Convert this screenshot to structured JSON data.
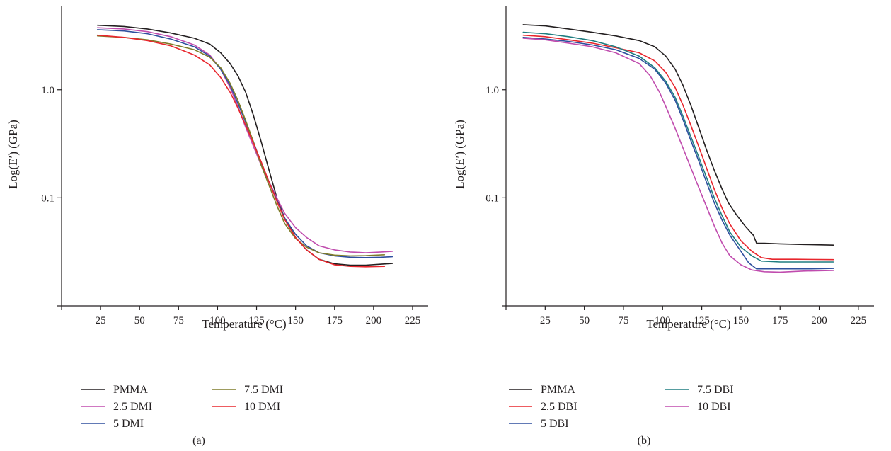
{
  "chart_data": [
    {
      "type": "line",
      "panel_label": "(a)",
      "xlabel": "Temperature (°C)",
      "ylabel": "Log(E′) (GPa)",
      "xlim": [
        0,
        235
      ],
      "ylim": [
        0.01,
        6
      ],
      "yscale": "log",
      "grid": false,
      "xticks": [
        25,
        50,
        75,
        100,
        125,
        150,
        175,
        200,
        225
      ],
      "yticks": [
        0.1,
        1.0
      ],
      "yticklabels": [
        "0.1",
        "1.0"
      ],
      "legend_position": "bottom",
      "series": [
        {
          "name": "PMMA",
          "color": "#231f20",
          "points": [
            [
              23,
              3.95
            ],
            [
              40,
              3.85
            ],
            [
              55,
              3.65
            ],
            [
              70,
              3.35
            ],
            [
              85,
              3.0
            ],
            [
              95,
              2.65
            ],
            [
              102,
              2.2
            ],
            [
              108,
              1.75
            ],
            [
              113,
              1.35
            ],
            [
              118,
              0.95
            ],
            [
              123,
              0.58
            ],
            [
              128,
              0.33
            ],
            [
              133,
              0.18
            ],
            [
              138,
              0.1
            ],
            [
              143,
              0.065
            ],
            [
              150,
              0.043
            ],
            [
              157,
              0.033
            ],
            [
              165,
              0.027
            ],
            [
              175,
              0.0245
            ],
            [
              185,
              0.0238
            ],
            [
              195,
              0.0238
            ],
            [
              205,
              0.0243
            ],
            [
              212,
              0.0247
            ]
          ]
        },
        {
          "name": "2.5 DMI",
          "color": "#c04cae",
          "points": [
            [
              23,
              3.75
            ],
            [
              40,
              3.65
            ],
            [
              55,
              3.45
            ],
            [
              70,
              3.1
            ],
            [
              85,
              2.6
            ],
            [
              95,
              2.1
            ],
            [
              102,
              1.55
            ],
            [
              108,
              1.05
            ],
            [
              113,
              0.7
            ],
            [
              118,
              0.45
            ],
            [
              123,
              0.3
            ],
            [
              128,
              0.2
            ],
            [
              133,
              0.14
            ],
            [
              138,
              0.1
            ],
            [
              143,
              0.072
            ],
            [
              150,
              0.053
            ],
            [
              157,
              0.043
            ],
            [
              165,
              0.036
            ],
            [
              175,
              0.033
            ],
            [
              185,
              0.0315
            ],
            [
              195,
              0.031
            ],
            [
              205,
              0.0315
            ],
            [
              212,
              0.032
            ]
          ]
        },
        {
          "name": "5 DMI",
          "color": "#2e4f9e",
          "points": [
            [
              23,
              3.6
            ],
            [
              40,
              3.5
            ],
            [
              55,
              3.3
            ],
            [
              70,
              2.95
            ],
            [
              85,
              2.5
            ],
            [
              95,
              2.05
            ],
            [
              102,
              1.55
            ],
            [
              108,
              1.1
            ],
            [
              113,
              0.75
            ],
            [
              118,
              0.5
            ],
            [
              123,
              0.33
            ],
            [
              128,
              0.21
            ],
            [
              133,
              0.14
            ],
            [
              138,
              0.095
            ],
            [
              143,
              0.065
            ],
            [
              150,
              0.046
            ],
            [
              157,
              0.036
            ],
            [
              165,
              0.031
            ],
            [
              175,
              0.029
            ],
            [
              185,
              0.0282
            ],
            [
              195,
              0.028
            ],
            [
              205,
              0.0282
            ],
            [
              212,
              0.0285
            ]
          ]
        },
        {
          "name": "7.5 DMI",
          "color": "#7f7c2a",
          "points": [
            [
              23,
              3.15
            ],
            [
              40,
              3.05
            ],
            [
              55,
              2.9
            ],
            [
              70,
              2.65
            ],
            [
              85,
              2.35
            ],
            [
              95,
              2.0
            ],
            [
              102,
              1.6
            ],
            [
              108,
              1.15
            ],
            [
              113,
              0.8
            ],
            [
              118,
              0.52
            ],
            [
              123,
              0.33
            ],
            [
              128,
              0.2
            ],
            [
              133,
              0.13
            ],
            [
              138,
              0.085
            ],
            [
              143,
              0.058
            ],
            [
              150,
              0.042
            ],
            [
              157,
              0.035
            ],
            [
              165,
              0.031
            ],
            [
              175,
              0.0295
            ],
            [
              185,
              0.029
            ],
            [
              195,
              0.0292
            ],
            [
              207,
              0.0297
            ]
          ]
        },
        {
          "name": "10 DMI",
          "color": "#e8262d",
          "points": [
            [
              23,
              3.2
            ],
            [
              40,
              3.05
            ],
            [
              55,
              2.85
            ],
            [
              70,
              2.55
            ],
            [
              85,
              2.1
            ],
            [
              95,
              1.7
            ],
            [
              102,
              1.3
            ],
            [
              108,
              0.95
            ],
            [
              113,
              0.68
            ],
            [
              118,
              0.47
            ],
            [
              123,
              0.32
            ],
            [
              128,
              0.215
            ],
            [
              133,
              0.14
            ],
            [
              138,
              0.093
            ],
            [
              143,
              0.063
            ],
            [
              150,
              0.043
            ],
            [
              157,
              0.033
            ],
            [
              165,
              0.027
            ],
            [
              175,
              0.024
            ],
            [
              185,
              0.0232
            ],
            [
              195,
              0.023
            ],
            [
              207,
              0.0232
            ]
          ]
        }
      ]
    },
    {
      "type": "line",
      "panel_label": "(b)",
      "xlabel": "Temperature (°C)",
      "ylabel": "Log(E′) (GPa)",
      "xlim": [
        0,
        235
      ],
      "ylim": [
        0.01,
        6
      ],
      "yscale": "log",
      "grid": false,
      "xticks": [
        25,
        50,
        75,
        100,
        125,
        150,
        175,
        200,
        225
      ],
      "yticks": [
        0.1,
        1.0
      ],
      "yticklabels": [
        "0.1",
        "1.0"
      ],
      "legend_position": "bottom",
      "series": [
        {
          "name": "PMMA",
          "color": "#231f20",
          "points": [
            [
              11,
              4.0
            ],
            [
              25,
              3.9
            ],
            [
              40,
              3.65
            ],
            [
              55,
              3.4
            ],
            [
              70,
              3.15
            ],
            [
              85,
              2.85
            ],
            [
              95,
              2.5
            ],
            [
              102,
              2.05
            ],
            [
              108,
              1.55
            ],
            [
              113,
              1.1
            ],
            [
              118,
              0.72
            ],
            [
              123,
              0.45
            ],
            [
              128,
              0.28
            ],
            [
              133,
              0.18
            ],
            [
              138,
              0.12
            ],
            [
              142,
              0.09
            ],
            [
              147,
              0.07
            ],
            [
              153,
              0.054
            ],
            [
              158,
              0.045
            ],
            [
              160,
              0.038
            ],
            [
              165,
              0.038
            ],
            [
              175,
              0.0375
            ],
            [
              190,
              0.037
            ],
            [
              209,
              0.0365
            ]
          ]
        },
        {
          "name": "2.5 DBI",
          "color": "#e8262d",
          "points": [
            [
              11,
              3.2
            ],
            [
              25,
              3.1
            ],
            [
              40,
              2.9
            ],
            [
              55,
              2.7
            ],
            [
              70,
              2.45
            ],
            [
              85,
              2.2
            ],
            [
              95,
              1.85
            ],
            [
              102,
              1.45
            ],
            [
              108,
              1.05
            ],
            [
              113,
              0.72
            ],
            [
              118,
              0.47
            ],
            [
              123,
              0.3
            ],
            [
              128,
              0.19
            ],
            [
              133,
              0.12
            ],
            [
              138,
              0.08
            ],
            [
              143,
              0.057
            ],
            [
              150,
              0.04
            ],
            [
              157,
              0.032
            ],
            [
              163,
              0.028
            ],
            [
              170,
              0.027
            ],
            [
              185,
              0.027
            ],
            [
              209,
              0.0268
            ]
          ]
        },
        {
          "name": "5 DBI",
          "color": "#2e4f9e",
          "points": [
            [
              11,
              3.05
            ],
            [
              25,
              2.95
            ],
            [
              40,
              2.8
            ],
            [
              55,
              2.6
            ],
            [
              70,
              2.35
            ],
            [
              85,
              1.95
            ],
            [
              95,
              1.55
            ],
            [
              102,
              1.15
            ],
            [
              108,
              0.8
            ],
            [
              113,
              0.53
            ],
            [
              118,
              0.34
            ],
            [
              123,
              0.22
            ],
            [
              128,
              0.14
            ],
            [
              133,
              0.09
            ],
            [
              138,
              0.062
            ],
            [
              143,
              0.045
            ],
            [
              150,
              0.032
            ],
            [
              155,
              0.025
            ],
            [
              160,
              0.022
            ],
            [
              175,
              0.022
            ],
            [
              195,
              0.022
            ],
            [
              209,
              0.0222
            ]
          ]
        },
        {
          "name": "7.5 DBI",
          "color": "#1f7d80",
          "points": [
            [
              11,
              3.4
            ],
            [
              25,
              3.3
            ],
            [
              40,
              3.1
            ],
            [
              55,
              2.85
            ],
            [
              70,
              2.5
            ],
            [
              85,
              2.05
            ],
            [
              95,
              1.6
            ],
            [
              102,
              1.2
            ],
            [
              108,
              0.85
            ],
            [
              113,
              0.57
            ],
            [
              118,
              0.37
            ],
            [
              123,
              0.24
            ],
            [
              128,
              0.155
            ],
            [
              133,
              0.1
            ],
            [
              138,
              0.068
            ],
            [
              143,
              0.048
            ],
            [
              150,
              0.035
            ],
            [
              157,
              0.029
            ],
            [
              163,
              0.026
            ],
            [
              175,
              0.0255
            ],
            [
              195,
              0.0255
            ],
            [
              209,
              0.0255
            ]
          ]
        },
        {
          "name": "10 DBI",
          "color": "#c04cae",
          "points": [
            [
              11,
              3.0
            ],
            [
              25,
              2.9
            ],
            [
              40,
              2.7
            ],
            [
              55,
              2.5
            ],
            [
              70,
              2.2
            ],
            [
              85,
              1.75
            ],
            [
              92,
              1.35
            ],
            [
              98,
              0.95
            ],
            [
              103,
              0.65
            ],
            [
              108,
              0.44
            ],
            [
              113,
              0.29
            ],
            [
              118,
              0.19
            ],
            [
              123,
              0.125
            ],
            [
              128,
              0.083
            ],
            [
              133,
              0.055
            ],
            [
              138,
              0.038
            ],
            [
              143,
              0.029
            ],
            [
              150,
              0.024
            ],
            [
              157,
              0.0215
            ],
            [
              165,
              0.0207
            ],
            [
              175,
              0.0205
            ],
            [
              190,
              0.021
            ],
            [
              209,
              0.0213
            ]
          ]
        }
      ]
    }
  ]
}
